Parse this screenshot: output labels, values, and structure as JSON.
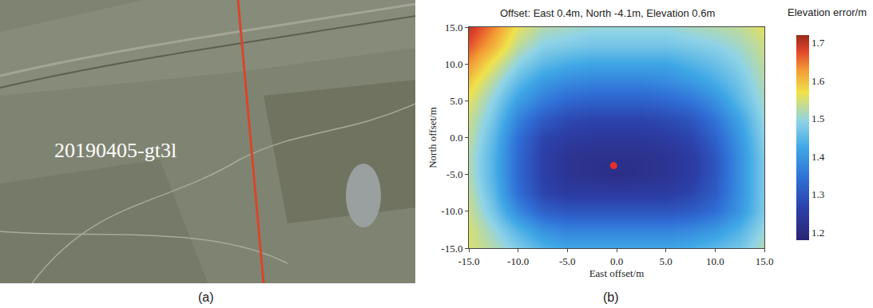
{
  "panel_a": {
    "label": "(a)",
    "track_label": "20190405-gt3l"
  },
  "chart_data": {
    "type": "heatmap",
    "panel_label": "(b)",
    "title": "Offset: East 0.4m, North -4.1m, Elevation 0.6m",
    "x_label": "East offset/m",
    "y_label": "North offset/m",
    "x": [
      -15,
      -12.5,
      -10,
      -7.5,
      -5,
      -2.5,
      0,
      2.5,
      5,
      7.5,
      10,
      12.5,
      15
    ],
    "y": [
      -15,
      -12.5,
      -10,
      -7.5,
      -5,
      -2.5,
      0,
      2.5,
      5,
      7.5,
      10,
      12.5,
      15
    ],
    "values": [
      [
        1.55,
        1.52,
        1.48,
        1.44,
        1.42,
        1.42,
        1.42,
        1.42,
        1.42,
        1.43,
        1.45,
        1.47,
        1.52
      ],
      [
        1.55,
        1.5,
        1.44,
        1.39,
        1.37,
        1.37,
        1.37,
        1.37,
        1.37,
        1.38,
        1.4,
        1.44,
        1.5
      ],
      [
        1.54,
        1.47,
        1.38,
        1.32,
        1.3,
        1.3,
        1.3,
        1.3,
        1.3,
        1.31,
        1.34,
        1.4,
        1.48
      ],
      [
        1.53,
        1.45,
        1.34,
        1.27,
        1.25,
        1.25,
        1.25,
        1.25,
        1.25,
        1.27,
        1.31,
        1.39,
        1.48
      ],
      [
        1.52,
        1.44,
        1.33,
        1.26,
        1.23,
        1.22,
        1.21,
        1.22,
        1.23,
        1.25,
        1.3,
        1.39,
        1.48
      ],
      [
        1.52,
        1.44,
        1.33,
        1.26,
        1.23,
        1.22,
        1.22,
        1.22,
        1.23,
        1.25,
        1.3,
        1.39,
        1.48
      ],
      [
        1.53,
        1.45,
        1.34,
        1.27,
        1.25,
        1.24,
        1.24,
        1.24,
        1.25,
        1.27,
        1.32,
        1.4,
        1.49
      ],
      [
        1.54,
        1.47,
        1.37,
        1.31,
        1.28,
        1.27,
        1.27,
        1.27,
        1.28,
        1.3,
        1.35,
        1.42,
        1.5
      ],
      [
        1.56,
        1.49,
        1.41,
        1.36,
        1.33,
        1.32,
        1.32,
        1.32,
        1.33,
        1.35,
        1.39,
        1.45,
        1.51
      ],
      [
        1.59,
        1.52,
        1.45,
        1.4,
        1.38,
        1.37,
        1.37,
        1.37,
        1.38,
        1.4,
        1.43,
        1.47,
        1.52
      ],
      [
        1.63,
        1.56,
        1.49,
        1.45,
        1.43,
        1.42,
        1.42,
        1.42,
        1.42,
        1.44,
        1.46,
        1.49,
        1.53
      ],
      [
        1.67,
        1.61,
        1.53,
        1.49,
        1.48,
        1.47,
        1.47,
        1.47,
        1.47,
        1.48,
        1.49,
        1.51,
        1.54
      ],
      [
        1.7,
        1.64,
        1.56,
        1.52,
        1.51,
        1.5,
        1.5,
        1.5,
        1.5,
        1.51,
        1.52,
        1.53,
        1.56
      ]
    ],
    "xlim": [
      -15,
      15
    ],
    "ylim": [
      -15,
      15
    ],
    "xticks": [
      {
        "value": -15,
        "label": "-15.0"
      },
      {
        "value": -10,
        "label": "-10.0"
      },
      {
        "value": -5,
        "label": "-5.0"
      },
      {
        "value": 0,
        "label": "0.0"
      },
      {
        "value": 5,
        "label": "5.0"
      },
      {
        "value": 10,
        "label": "10.0"
      },
      {
        "value": 15,
        "label": "15.0"
      }
    ],
    "yticks": [
      {
        "value": -15,
        "label": "-15.0"
      },
      {
        "value": -10,
        "label": "-10.0"
      },
      {
        "value": -5,
        "label": "-5.0"
      },
      {
        "value": 0,
        "label": "0.0"
      },
      {
        "value": 5,
        "label": "5.0"
      },
      {
        "value": 10,
        "label": "10.0"
      },
      {
        "value": 15,
        "label": "15.0"
      }
    ],
    "colorbar": {
      "title": "Elevation error/m",
      "range": [
        1.18,
        1.72
      ],
      "ticks": [
        1.2,
        1.3,
        1.4,
        1.5,
        1.6,
        1.7
      ]
    },
    "marker_point": {
      "x": -0.3,
      "y": -3.8,
      "color": "#e8302a"
    },
    "grid": false
  }
}
